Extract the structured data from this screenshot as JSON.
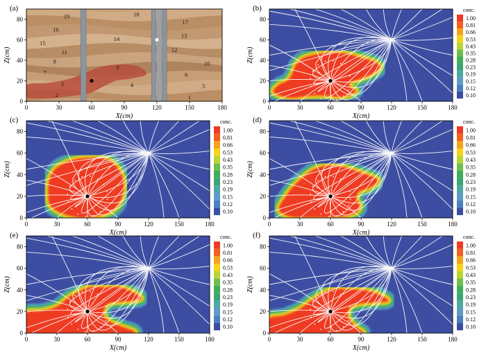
{
  "axis": {
    "x_ticks": [
      0,
      30,
      60,
      90,
      120,
      150,
      180
    ],
    "z_ticks": [
      0,
      20,
      40,
      60,
      80
    ],
    "xlabel": "X(cm)",
    "zlabel": "Z(cm)",
    "xlim": [
      0,
      180
    ],
    "zlim": [
      0,
      90
    ]
  },
  "colorbar": {
    "title": "conc.",
    "levels": [
      "1.00",
      "0.81",
      "0.66",
      "0.53",
      "0.43",
      "0.35",
      "0.28",
      "0.23",
      "0.19",
      "0.15",
      "0.12",
      "0.10"
    ],
    "colors": [
      "#ee3a24",
      "#f2601f",
      "#f7a21b",
      "#f7d317",
      "#b9d531",
      "#6cc04a",
      "#3fae59",
      "#3aa475",
      "#4ea7a3",
      "#5d9bc9",
      "#4c7fbf",
      "#3a4fa0"
    ]
  },
  "background_color": "#3d4ea2",
  "streamline_color": "#ffffff",
  "injection_point": {
    "x": 60,
    "z": 20
  },
  "extraction_point": {
    "x": 120,
    "z": 60
  },
  "chart_data": [
    {
      "type": "image",
      "panel": "(a)",
      "layer_labels": [
        {
          "label": "19",
          "x": 37,
          "z": 83
        },
        {
          "label": "16",
          "x": 27,
          "z": 70
        },
        {
          "label": "15",
          "x": 15,
          "z": 57
        },
        {
          "label": "11",
          "x": 35,
          "z": 48
        },
        {
          "label": "8",
          "x": 26,
          "z": 39
        },
        {
          "label": "7",
          "x": 17,
          "z": 28
        },
        {
          "label": "3",
          "x": 33,
          "z": 17
        },
        {
          "label": "2",
          "x": 28,
          "z": 6
        },
        {
          "label": "18",
          "x": 101,
          "z": 85
        },
        {
          "label": "14",
          "x": 83,
          "z": 61
        },
        {
          "label": "9",
          "x": 84,
          "z": 33
        },
        {
          "label": "4",
          "x": 97,
          "z": 16
        },
        {
          "label": "17",
          "x": 146,
          "z": 77
        },
        {
          "label": "13",
          "x": 145,
          "z": 64
        },
        {
          "label": "12",
          "x": 136,
          "z": 50
        },
        {
          "label": "10",
          "x": 166,
          "z": 37
        },
        {
          "label": "6",
          "x": 147,
          "z": 26
        },
        {
          "label": "5",
          "x": 163,
          "z": 15
        },
        {
          "label": "1",
          "x": 150,
          "z": 4
        }
      ]
    },
    {
      "type": "contour",
      "panel": "(b)",
      "plume_outline": [
        [
          5,
          9
        ],
        [
          10,
          16
        ],
        [
          17,
          19
        ],
        [
          22,
          25
        ],
        [
          27,
          36
        ],
        [
          34,
          42
        ],
        [
          45,
          45
        ],
        [
          60,
          47
        ],
        [
          75,
          46
        ],
        [
          90,
          42
        ],
        [
          103,
          38
        ],
        [
          108,
          33
        ],
        [
          100,
          27
        ],
        [
          88,
          22
        ],
        [
          80,
          19
        ],
        [
          78,
          14
        ],
        [
          84,
          10
        ],
        [
          72,
          5
        ],
        [
          55,
          6
        ],
        [
          40,
          6
        ],
        [
          20,
          4
        ]
      ]
    },
    {
      "type": "contour",
      "panel": "(c)",
      "plume_outline": [
        [
          22,
          20
        ],
        [
          23,
          35
        ],
        [
          30,
          46
        ],
        [
          45,
          53
        ],
        [
          60,
          55
        ],
        [
          78,
          54
        ],
        [
          90,
          45
        ],
        [
          95,
          32
        ],
        [
          92,
          16
        ],
        [
          82,
          6
        ],
        [
          62,
          1
        ],
        [
          45,
          2
        ],
        [
          32,
          6
        ],
        [
          24,
          12
        ]
      ]
    },
    {
      "type": "contour",
      "panel": "(d)",
      "plume_outline": [
        [
          10,
          8
        ],
        [
          16,
          19
        ],
        [
          23,
          28
        ],
        [
          33,
          37
        ],
        [
          45,
          45
        ],
        [
          60,
          48
        ],
        [
          75,
          46
        ],
        [
          88,
          42
        ],
        [
          100,
          38
        ],
        [
          106,
          34
        ],
        [
          97,
          28
        ],
        [
          88,
          25
        ],
        [
          85,
          18
        ],
        [
          88,
          9
        ],
        [
          78,
          3
        ],
        [
          60,
          1
        ],
        [
          40,
          1
        ],
        [
          20,
          2
        ]
      ]
    },
    {
      "type": "contour",
      "panel": "(e)",
      "plume_outline": [
        [
          0,
          18
        ],
        [
          15,
          20
        ],
        [
          30,
          24
        ],
        [
          42,
          33
        ],
        [
          52,
          38
        ],
        [
          62,
          42
        ],
        [
          78,
          42
        ],
        [
          92,
          42
        ],
        [
          105,
          37
        ],
        [
          112,
          32
        ],
        [
          100,
          30
        ],
        [
          85,
          29
        ],
        [
          78,
          26
        ],
        [
          75,
          17
        ],
        [
          82,
          10
        ],
        [
          92,
          6
        ],
        [
          105,
          0
        ],
        [
          60,
          0
        ],
        [
          0,
          0
        ]
      ]
    },
    {
      "type": "contour",
      "panel": "(f)",
      "plume_outline": [
        [
          0,
          13
        ],
        [
          15,
          16
        ],
        [
          30,
          22
        ],
        [
          42,
          30
        ],
        [
          52,
          36
        ],
        [
          62,
          40
        ],
        [
          78,
          40
        ],
        [
          94,
          39
        ],
        [
          108,
          35
        ],
        [
          116,
          30
        ],
        [
          104,
          29
        ],
        [
          90,
          28
        ],
        [
          80,
          25
        ],
        [
          76,
          17
        ],
        [
          80,
          10
        ],
        [
          86,
          4
        ],
        [
          90,
          0
        ],
        [
          60,
          0
        ],
        [
          0,
          0
        ]
      ]
    }
  ]
}
